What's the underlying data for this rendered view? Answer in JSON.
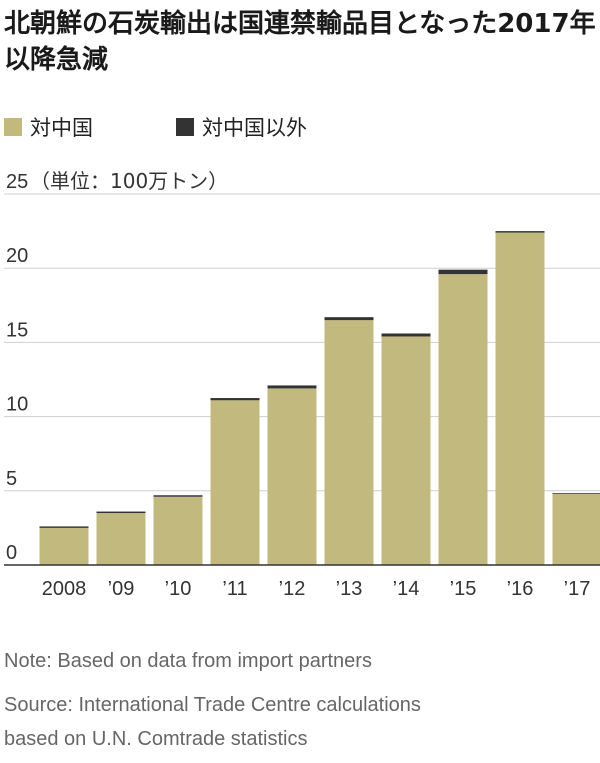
{
  "header": {
    "title": "北朝鮮の石炭輸出は国連禁輸品目となった2017年以降急減"
  },
  "legend": [
    {
      "label": "対中国",
      "color": "#c2b97f"
    },
    {
      "label": "対中国以外",
      "color": "#333333"
    }
  ],
  "chart_data": {
    "type": "bar",
    "stacked": true,
    "categories": [
      "2008",
      "’09",
      "’10",
      "’11",
      "’12",
      "’13",
      "’14",
      "’15",
      "’16",
      "’17"
    ],
    "series": [
      {
        "name": "対中国",
        "color": "#c2b97f",
        "values": [
          2.5,
          3.5,
          4.6,
          11.1,
          11.9,
          16.5,
          15.4,
          19.6,
          22.4,
          4.8
        ]
      },
      {
        "name": "対中国以外",
        "color": "#333333",
        "values": [
          0.1,
          0.1,
          0.1,
          0.15,
          0.2,
          0.2,
          0.2,
          0.3,
          0.1,
          0.05
        ]
      }
    ],
    "y_ticks": [
      0,
      5,
      10,
      15,
      20,
      25
    ],
    "ylim": [
      0,
      25
    ],
    "unit_label": "（単位：100万トン）",
    "grid": true
  },
  "notes": {
    "note": "Note: Based on data from import partners",
    "source_line1": "Source: International Trade Centre calculations",
    "source_line2": "based on U.N. Comtrade statistics"
  }
}
